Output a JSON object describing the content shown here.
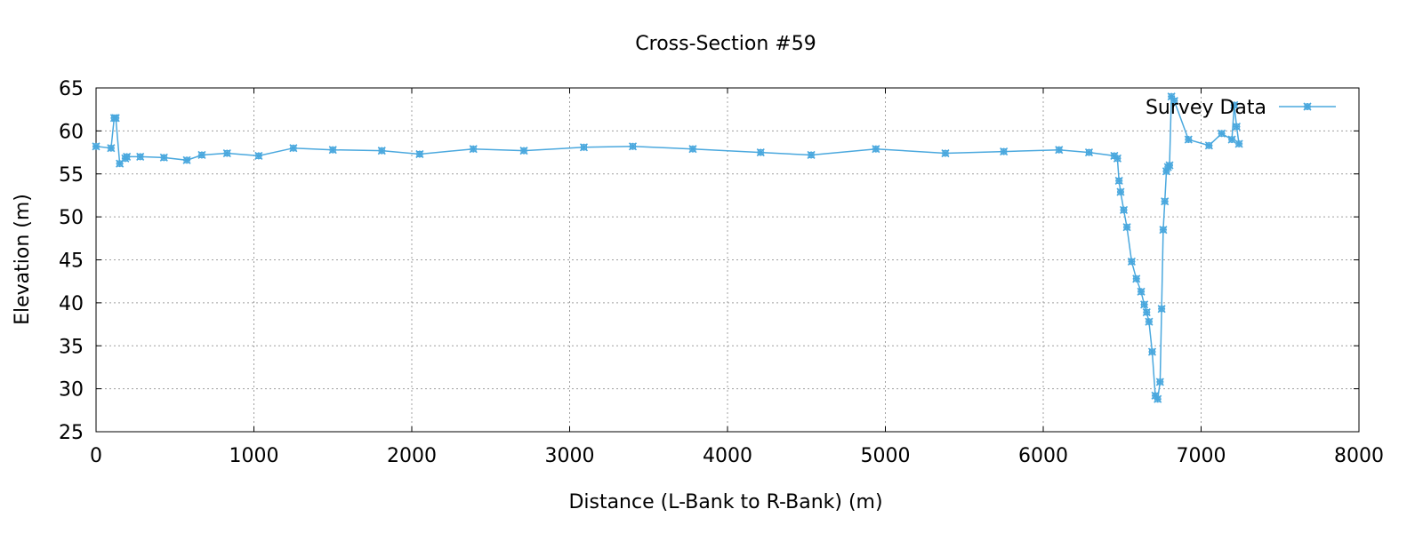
{
  "chart_data": {
    "type": "line",
    "title": "Cross-Section #59",
    "xlabel": "Distance (L-Bank to R-Bank) (m)",
    "ylabel": "Elevation (m)",
    "xlim": [
      0,
      8000
    ],
    "ylim": [
      25,
      65
    ],
    "xticks": [
      0,
      1000,
      2000,
      3000,
      4000,
      5000,
      6000,
      7000,
      8000
    ],
    "yticks": [
      25,
      30,
      35,
      40,
      45,
      50,
      55,
      60,
      65
    ],
    "grid": true,
    "legend_position": "top-right",
    "series": [
      {
        "name": "Survey Data",
        "color": "#4aa8de",
        "marker": "asterisk",
        "x": [
          0,
          95,
          115,
          125,
          150,
          185,
          195,
          280,
          430,
          575,
          670,
          830,
          1030,
          1250,
          1500,
          1810,
          2050,
          2390,
          2710,
          3090,
          3400,
          3780,
          4210,
          4530,
          4940,
          5380,
          5750,
          6100,
          6290,
          6450,
          6470,
          6480,
          6490,
          6510,
          6530,
          6560,
          6590,
          6620,
          6640,
          6655,
          6670,
          6690,
          6710,
          6725,
          6740,
          6750,
          6760,
          6770,
          6780,
          6790,
          6800,
          6812,
          6830,
          6920,
          7050,
          7130,
          7195,
          7210,
          7225,
          7240
        ],
        "y": [
          58.2,
          58.0,
          61.5,
          61.5,
          56.2,
          56.8,
          57.0,
          57.0,
          56.9,
          56.6,
          57.2,
          57.4,
          57.1,
          58.0,
          57.8,
          57.7,
          57.3,
          57.9,
          57.7,
          58.1,
          58.2,
          57.9,
          57.5,
          57.2,
          57.9,
          57.4,
          57.6,
          57.8,
          57.5,
          57.1,
          56.8,
          54.2,
          52.9,
          50.8,
          48.8,
          44.8,
          42.8,
          41.3,
          39.8,
          38.9,
          37.8,
          34.3,
          29.2,
          28.8,
          30.8,
          39.3,
          48.5,
          51.8,
          55.3,
          55.8,
          56.0,
          64.0,
          63.5,
          59.0,
          58.3,
          59.7,
          59.0,
          63.0,
          60.5,
          58.5
        ]
      }
    ]
  }
}
